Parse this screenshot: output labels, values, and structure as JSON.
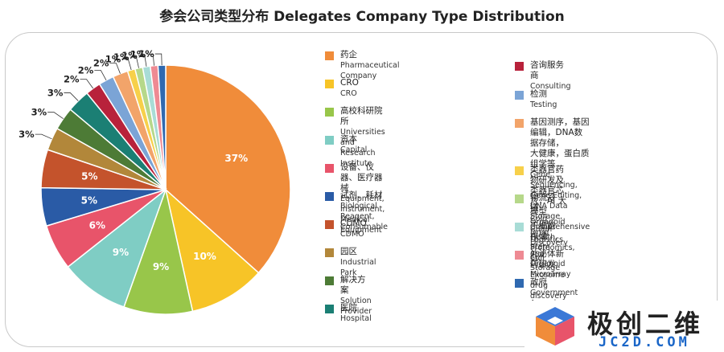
{
  "title": "参会公司类型分布 Delegates Company Type Distribution",
  "chart_data": {
    "type": "pie",
    "title": "参会公司类型分布 Delegates Company Type Distribution",
    "legend_position": "right",
    "slices": [
      {
        "cn": "药企",
        "en": "Pharmaceutical Company",
        "value": 37,
        "label": "37%",
        "color": "#f08c3a"
      },
      {
        "cn": "CRO",
        "en": "CRO",
        "value": 10,
        "label": "10%",
        "color": "#f7c427"
      },
      {
        "cn": "高校科研院所",
        "en": "Universities and Research Institute",
        "value": 9,
        "label": "9%",
        "color": "#98c64a"
      },
      {
        "cn": "资本",
        "en": "Capital",
        "value": 9,
        "label": "9%",
        "color": "#7fcdc4"
      },
      {
        "cn": "设备、仪器、医疗器械",
        "en": "Equipment, Instrument, Medical Equipment",
        "value": 6,
        "label": "6%",
        "color": "#e8546a"
      },
      {
        "cn": "试剂、耗材",
        "en": "Biological Reagent, Consumable",
        "value": 5,
        "label": "5%",
        "color": "#2a5ba6"
      },
      {
        "cn": "CDMO",
        "en": "CDMO",
        "value": 5,
        "label": "5%",
        "color": "#c4532c"
      },
      {
        "cn": "园区",
        "en": "Industrial Park",
        "value": 3,
        "label": "3%",
        "color": "#b2873a"
      },
      {
        "cn": "解决方案",
        "en": "Solution Provider",
        "value": 3,
        "label": "3%",
        "color": "#4d7b36"
      },
      {
        "cn": "医院",
        "en": "Hospital",
        "value": 3,
        "label": "3%",
        "color": "#1b7f74"
      },
      {
        "cn": "咨询服务商",
        "en": "Consulting",
        "value": 2,
        "label": "2%",
        "color": "#b8223b"
      },
      {
        "cn": "检测",
        "en": "Testing",
        "value": 2,
        "label": "2%",
        "color": "#7ba4d6"
      },
      {
        "cn": "基因测序，基因编辑，DNA数据存储，大健康，蛋白质组学等",
        "en": "Gene Sequencing, Gene Editing, DNA Data Storage, Comprehensive Health, Proteomics, etc.",
        "value": 2,
        "label": "2%",
        "color": "#f2a46a"
      },
      {
        "cn": "类器官药物研发及类器官芯片，AI 大模型",
        "en": "Organoid Drug Discovery and Organoid Microarray",
        "value": 1,
        "label": "1%",
        "color": "#f7d04a"
      },
      {
        "cn": "物流冷链",
        "en": "Cold Chain Logistics",
        "value": 1,
        "label": "1%",
        "color": "#b6d88a"
      },
      {
        "cn": "干细胞存储",
        "en": "Stem Cell Storage",
        "value": 1,
        "label": "1%",
        "color": "#a8dcd6"
      },
      {
        "cn": "外泌体新药研发",
        "en": "Exosome drug discovery",
        "value": 1,
        "label": "1%",
        "color": "#ee8a93"
      },
      {
        "cn": "政府",
        "en": "Government Agencie",
        "value": 1,
        "label": "1%",
        "color": "#2f69b0"
      }
    ]
  },
  "legend_left": [
    {
      "cn": "药企",
      "en": "Pharmaceutical Company",
      "color": "#f08c3a"
    },
    {
      "cn": "CRO",
      "en": "CRO",
      "color": "#f7c427"
    },
    {
      "cn": "高校科研院所",
      "en": "Universities and Research Institute",
      "color": "#98c64a"
    },
    {
      "cn": "资本",
      "en": "Capital",
      "color": "#7fcdc4"
    },
    {
      "cn": "设备、仪器、医疗器械",
      "en": "Equipment, Instrument, Medical Equipment",
      "color": "#e8546a"
    },
    {
      "cn": "试剂、耗材",
      "en": "Biological Reagent, Consumable",
      "color": "#2a5ba6"
    },
    {
      "cn": "CDMO",
      "en": "CDMO",
      "color": "#c4532c"
    },
    {
      "cn": "园区",
      "en": "Industrial Park",
      "color": "#b2873a"
    },
    {
      "cn": "解决方案",
      "en": "Solution Provider",
      "color": "#4d7b36"
    },
    {
      "cn": "医院",
      "en": "Hospital",
      "color": "#1b7f74"
    }
  ],
  "legend_right": [
    {
      "cn": "咨询服务商",
      "en": "Consulting",
      "color": "#b8223b"
    },
    {
      "cn": "检测",
      "en": "Testing",
      "color": "#7ba4d6"
    },
    {
      "cn": "基因测序，基因编辑，DNA数据存储，\n大健康，蛋白质组学等",
      "en": "Gene Sequencing, Gene Editing, DNA Data\nStorage, Comprehensive Health, Proteomics, etc.",
      "color": "#f2a46a"
    },
    {
      "cn": "类器官药物研发及类器官芯片，AI 大模型",
      "en": "Organoid Drug Discovery and Organoid Microarray",
      "color": "#f7d04a"
    },
    {
      "cn": "物流冷链",
      "en": "Cold Chain Logistics",
      "color": "#b6d88a"
    },
    {
      "cn": "干细胞存储",
      "en": "Stem Cell Storage",
      "color": "#a8dcd6"
    },
    {
      "cn": "外泌体新药研发",
      "en": "Exosome drug discovery",
      "color": "#ee8a93"
    },
    {
      "cn": "政府",
      "en": "Government Agencie",
      "color": "#2f69b0"
    }
  ],
  "watermark": {
    "cn": "极创二维",
    "en": "JC2D.COM"
  }
}
